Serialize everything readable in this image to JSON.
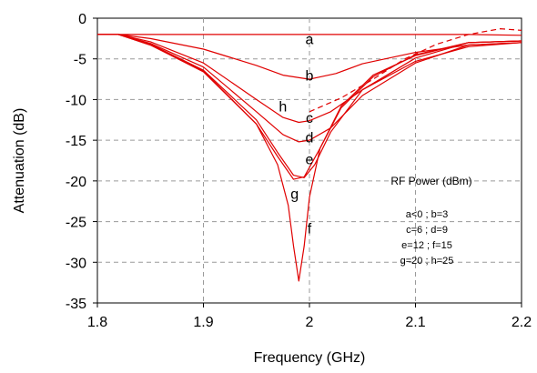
{
  "chart_data": {
    "type": "line",
    "title": "",
    "xlabel": "Frequency (GHz)",
    "ylabel": "Attenuation (dB)",
    "xlim": [
      1.8,
      2.2
    ],
    "ylim": [
      -35,
      0
    ],
    "x_ticks": [
      1.8,
      1.9,
      2.0,
      2.1,
      2.2
    ],
    "x_tick_labels": [
      "1.8",
      "1.9",
      "2",
      "2.1",
      "2.2"
    ],
    "y_ticks": [
      0,
      -5,
      -10,
      -15,
      -20,
      -25,
      -30,
      -35
    ],
    "y_tick_labels": [
      "0",
      "-5",
      "-10",
      "-15",
      "-20",
      "-25",
      "-30",
      "-35"
    ],
    "grid": true,
    "grid_style": "dashed",
    "line_color": "#e00000",
    "legend": {
      "title": "RF Power (dBm)",
      "lines": [
        "a<0  ;  b=3",
        "c=6  ;  d=9",
        "e=12  ;  f=15",
        "g=20 ; h=25"
      ]
    },
    "series": [
      {
        "name": "a",
        "dashed": false,
        "points": [
          [
            1.8,
            -2
          ],
          [
            1.84,
            -2
          ],
          [
            1.9,
            -2
          ],
          [
            1.95,
            -2
          ],
          [
            2.0,
            -2
          ],
          [
            2.05,
            -2
          ],
          [
            2.1,
            -2
          ],
          [
            2.15,
            -2
          ],
          [
            2.2,
            -2.1
          ]
        ]
      },
      {
        "name": "b",
        "dashed": false,
        "points": [
          [
            1.8,
            -2
          ],
          [
            1.82,
            -2
          ],
          [
            1.85,
            -2.5
          ],
          [
            1.9,
            -3.8
          ],
          [
            1.95,
            -5.8
          ],
          [
            1.975,
            -7
          ],
          [
            2.0,
            -7.5
          ],
          [
            2.025,
            -6.8
          ],
          [
            2.05,
            -5.6
          ],
          [
            2.1,
            -4.2
          ],
          [
            2.15,
            -3.3
          ],
          [
            2.2,
            -3
          ]
        ]
      },
      {
        "name": "c",
        "dashed": false,
        "points": [
          [
            1.8,
            -2
          ],
          [
            1.82,
            -2
          ],
          [
            1.85,
            -2.9
          ],
          [
            1.9,
            -5.5
          ],
          [
            1.95,
            -10
          ],
          [
            1.975,
            -12.2
          ],
          [
            1.99,
            -12.8
          ],
          [
            2.0,
            -12.6
          ],
          [
            2.02,
            -11.5
          ],
          [
            2.05,
            -8.8
          ],
          [
            2.1,
            -5.3
          ],
          [
            2.15,
            -3.5
          ],
          [
            2.2,
            -3
          ]
        ]
      },
      {
        "name": "d",
        "dashed": false,
        "points": [
          [
            1.8,
            -2
          ],
          [
            1.82,
            -2
          ],
          [
            1.85,
            -3.1
          ],
          [
            1.9,
            -6
          ],
          [
            1.95,
            -11.5
          ],
          [
            1.975,
            -14.3
          ],
          [
            1.99,
            -15.2
          ],
          [
            2.0,
            -15
          ],
          [
            2.02,
            -13.5
          ],
          [
            2.05,
            -9.5
          ],
          [
            2.1,
            -5.5
          ],
          [
            2.15,
            -3.3
          ],
          [
            2.2,
            -3
          ]
        ]
      },
      {
        "name": "e",
        "dashed": false,
        "points": [
          [
            1.8,
            -2
          ],
          [
            1.82,
            -2
          ],
          [
            1.85,
            -3.2
          ],
          [
            1.9,
            -6.4
          ],
          [
            1.95,
            -12.5
          ],
          [
            1.97,
            -16.5
          ],
          [
            1.985,
            -19.3
          ],
          [
            1.995,
            -19.6
          ],
          [
            2.005,
            -18
          ],
          [
            2.02,
            -14
          ],
          [
            2.05,
            -8.8
          ],
          [
            2.1,
            -4.9
          ],
          [
            2.15,
            -3
          ],
          [
            2.2,
            -2.8
          ]
        ]
      },
      {
        "name": "f",
        "dashed": false,
        "points": [
          [
            1.8,
            -2
          ],
          [
            1.82,
            -2
          ],
          [
            1.85,
            -3.3
          ],
          [
            1.9,
            -6.6
          ],
          [
            1.95,
            -13
          ],
          [
            1.97,
            -18
          ],
          [
            1.98,
            -23
          ],
          [
            1.985,
            -28
          ],
          [
            1.99,
            -32.3
          ],
          [
            1.995,
            -28
          ],
          [
            2.0,
            -22
          ],
          [
            2.01,
            -16
          ],
          [
            2.03,
            -10.8
          ],
          [
            2.06,
            -7
          ],
          [
            2.1,
            -4.6
          ],
          [
            2.15,
            -3
          ],
          [
            2.2,
            -2.8
          ]
        ]
      },
      {
        "name": "g",
        "dashed": false,
        "points": [
          [
            1.8,
            -2
          ],
          [
            1.82,
            -2
          ],
          [
            1.85,
            -3.3
          ],
          [
            1.9,
            -6.5
          ],
          [
            1.95,
            -13
          ],
          [
            1.97,
            -17
          ],
          [
            1.985,
            -19.8
          ],
          [
            1.995,
            -19.5
          ],
          [
            2.01,
            -16
          ],
          [
            2.03,
            -11
          ],
          [
            2.06,
            -7.2
          ],
          [
            2.1,
            -4.5
          ],
          [
            2.15,
            -3
          ],
          [
            2.2,
            -2.8
          ]
        ]
      },
      {
        "name": "h",
        "dashed": true,
        "points": [
          [
            2.0,
            -11.5
          ],
          [
            2.03,
            -9.8
          ],
          [
            2.06,
            -7.5
          ],
          [
            2.09,
            -5
          ],
          [
            2.12,
            -3.2
          ],
          [
            2.15,
            -2
          ],
          [
            2.18,
            -1.3
          ],
          [
            2.2,
            -1.5
          ]
        ]
      }
    ],
    "curve_labels": [
      {
        "text": "a",
        "x": 2.0,
        "y": -2.5
      },
      {
        "text": "b",
        "x": 2.0,
        "y": -7.0
      },
      {
        "text": "h",
        "x": 1.975,
        "y": -10.8
      },
      {
        "text": "c",
        "x": 2.0,
        "y": -12.2
      },
      {
        "text": "d",
        "x": 2.0,
        "y": -14.6
      },
      {
        "text": "e",
        "x": 2.0,
        "y": -17.3
      },
      {
        "text": "g",
        "x": 1.986,
        "y": -21.5
      },
      {
        "text": "f",
        "x": 2.0,
        "y": -25.8
      }
    ]
  }
}
